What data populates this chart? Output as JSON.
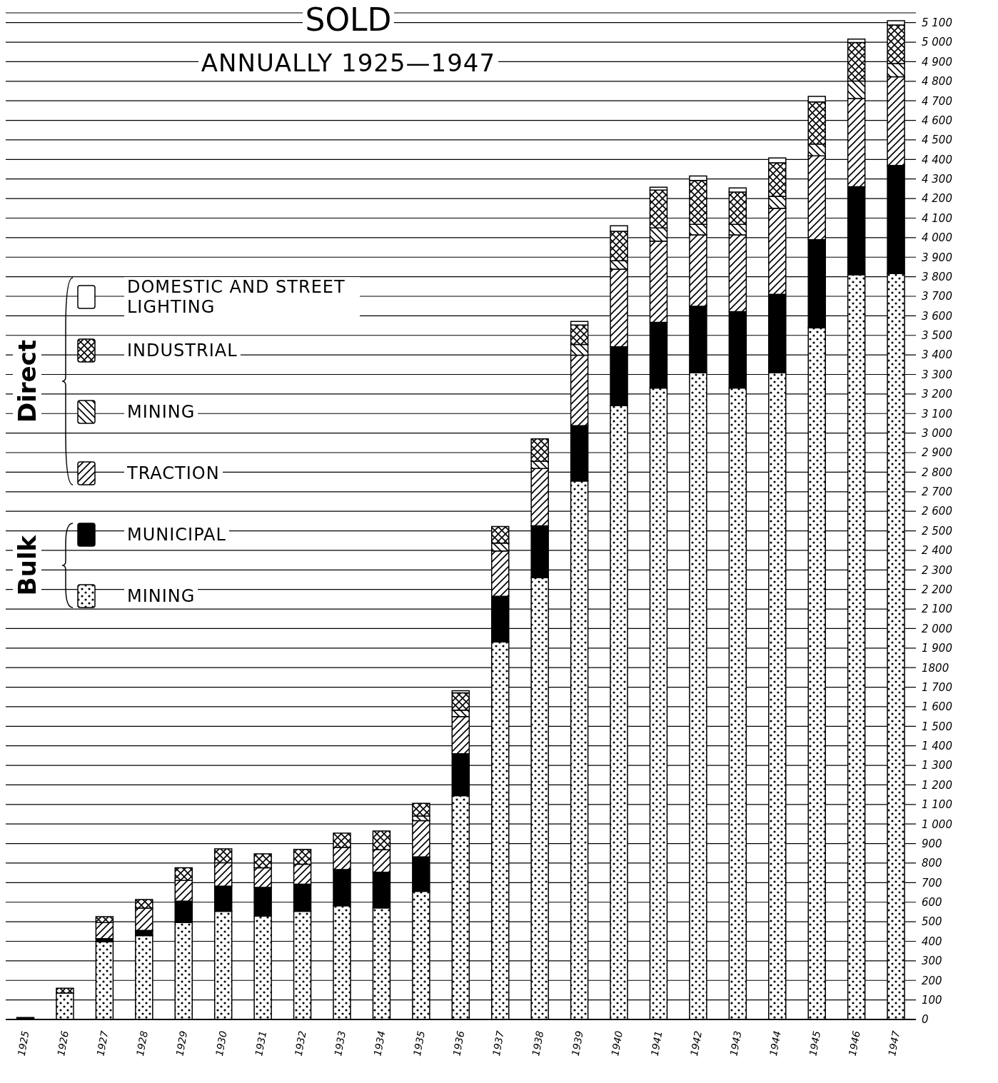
{
  "chart_data": {
    "type": "bar",
    "stacked": true,
    "title": "SOLD",
    "subtitle": "ANNUALLY 1925—1947",
    "categories": [
      "1925",
      "1926",
      "1927",
      "1928",
      "1929",
      "1930",
      "1931",
      "1932",
      "1933",
      "1934",
      "1935",
      "1936",
      "1937",
      "1938",
      "1939",
      "1940",
      "1941",
      "1942",
      "1943",
      "1944",
      "1945",
      "1946",
      "1947"
    ],
    "series": [
      {
        "name": "MINING",
        "color": "#000000",
        "values": [
          null,
          135,
          398,
          429,
          496,
          553,
          529,
          553,
          582,
          571,
          656,
          1145,
          1932,
          2261,
          2755,
          3141,
          3231,
          3309,
          3231,
          3309,
          3538,
          3810,
          3817
        ]
      },
      {
        "name": "MUNICIPAL",
        "color": "#000000",
        "values": [
          10,
          null,
          16,
          27,
          109,
          129,
          147,
          139,
          185,
          182,
          176,
          215,
          233,
          265,
          283,
          301,
          336,
          340,
          390,
          401,
          451,
          451,
          552
        ]
      },
      {
        "name": "TRACTION",
        "color": "#000000",
        "values": [
          null,
          null,
          82,
          114,
          106,
          120,
          100,
          102,
          113,
          115,
          185,
          190,
          232,
          293,
          361,
          397,
          415,
          365,
          393,
          440,
          430,
          451,
          454
        ]
      },
      {
        "name": "MINING",
        "color": "#000000",
        "values": [
          null,
          null,
          null,
          null,
          null,
          null,
          null,
          null,
          null,
          null,
          24,
          32,
          40,
          36,
          54,
          43,
          68,
          54,
          54,
          61,
          60,
          89,
          68
        ]
      },
      {
        "name": "INDUSTRIAL",
        "color": "#000000",
        "values": [
          null,
          25,
          30,
          44,
          65,
          71,
          71,
          76,
          73,
          96,
          65,
          89,
          85,
          115,
          100,
          150,
          193,
          225,
          165,
          172,
          215,
          197,
          197
        ]
      },
      {
        "name": "DOMESTIC AND STREET LIGHTING",
        "color": "#ffffff",
        "values": [
          null,
          null,
          null,
          null,
          null,
          null,
          null,
          null,
          null,
          null,
          null,
          11,
          null,
          null,
          18,
          29,
          15,
          22,
          21,
          25,
          29,
          18,
          22
        ]
      }
    ],
    "annotations": [
      "Bulk",
      "Direct"
    ],
    "ylim": [
      0,
      5150
    ],
    "yticks": [
      0,
      100,
      200,
      300,
      400,
      500,
      600,
      700,
      800,
      900,
      {
        "value": 1000,
        "label": "1 000"
      },
      {
        "value": 1100,
        "label": "1 100"
      },
      {
        "value": 1200,
        "label": "1 200"
      },
      {
        "value": 1300,
        "label": "1 300"
      },
      {
        "value": 1400,
        "label": "1 400"
      },
      {
        "value": 1500,
        "label": "1 500"
      },
      {
        "value": 1600,
        "label": "1 600"
      },
      {
        "value": 1700,
        "label": "1 700"
      },
      1800,
      {
        "value": 1900,
        "label": "1 900"
      },
      {
        "value": 2000,
        "label": "2 000"
      },
      {
        "value": 2100,
        "label": "2 100"
      },
      {
        "value": 2200,
        "label": "2 200"
      },
      {
        "value": 2300,
        "label": "2 300"
      },
      {
        "value": 2400,
        "label": "2 400"
      },
      {
        "value": 2500,
        "label": "2 500"
      },
      {
        "value": 2600,
        "label": "2 600"
      },
      {
        "value": 2700,
        "label": "2 700"
      },
      {
        "value": 2800,
        "label": "2 800"
      },
      {
        "value": 2900,
        "label": "2 900"
      },
      {
        "value": 3000,
        "label": "3 000"
      },
      {
        "value": 3100,
        "label": "3 100"
      },
      {
        "value": 3200,
        "label": "3 200"
      },
      {
        "value": 3300,
        "label": "3 300"
      },
      {
        "value": 3400,
        "label": "3 400"
      },
      {
        "value": 3500,
        "label": "3 500"
      },
      {
        "value": 3600,
        "label": "3 600"
      },
      {
        "value": 3700,
        "label": "3 700"
      },
      {
        "value": 3800,
        "label": "3 800"
      },
      {
        "value": 3900,
        "label": "3 900"
      },
      {
        "value": 4000,
        "label": "4 000"
      },
      {
        "value": 4100,
        "label": "4 100"
      },
      {
        "value": 4200,
        "label": "4 200"
      },
      {
        "value": 4300,
        "label": "4 300"
      },
      {
        "value": 4400,
        "label": "4 400"
      },
      {
        "value": 4500,
        "label": "4 500"
      },
      {
        "value": 4600,
        "label": "4 600"
      },
      {
        "value": 4700,
        "label": "4 700"
      },
      {
        "value": 4800,
        "label": "4 800"
      },
      {
        "value": 4900,
        "label": "4 900"
      },
      {
        "value": 5000,
        "label": "5 000"
      },
      {
        "value": 5100,
        "label": "5 100"
      }
    ],
    "grid": "y",
    "legend": "top left"
  }
}
